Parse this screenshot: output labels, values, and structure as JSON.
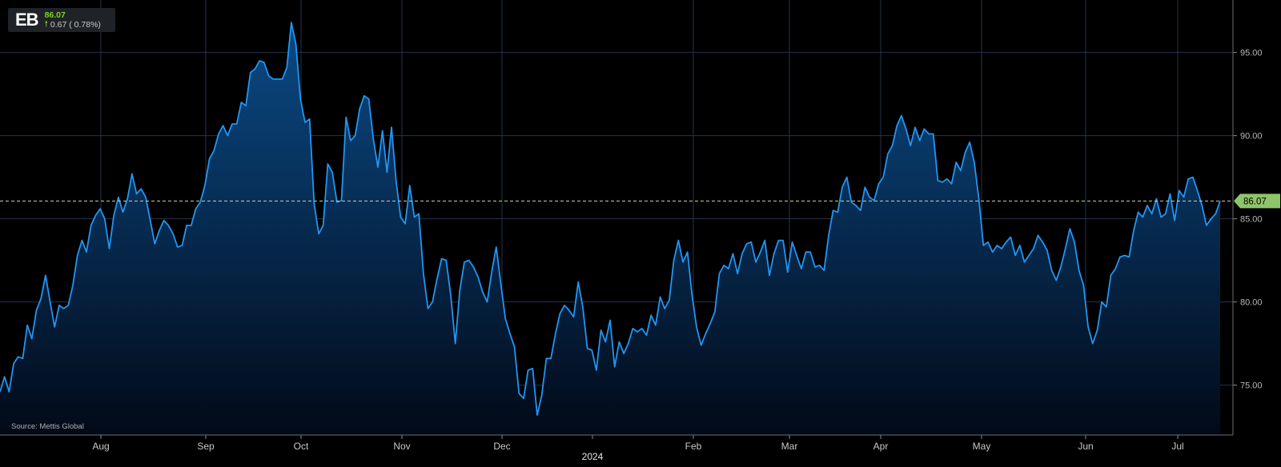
{
  "ticker": {
    "symbol": "EB",
    "price": "86.07",
    "change": "0.67 ( 0.78%)",
    "direction": "up"
  },
  "source": "Source: Mettis Global",
  "colors": {
    "background": "#000000",
    "line": "#2196f3",
    "area_top": "#0b4a86",
    "grid": "#26334a",
    "last_price_tag": "#8fc46a"
  },
  "chart_data": {
    "type": "area",
    "title": "",
    "xlabel": "",
    "ylabel": "",
    "ylim": [
      72,
      98
    ],
    "y_ticks": [
      "75.00",
      "80.00",
      "85.00",
      "90.00",
      "95.00"
    ],
    "x_ticks": [
      "Aug",
      "Sep",
      "Oct",
      "Nov",
      "Dec",
      "Feb",
      "Mar",
      "Apr",
      "May",
      "Jun",
      "Jul"
    ],
    "year_label": "2024",
    "last_price_label": "86.07",
    "last_price": 86.07,
    "grid": true,
    "axis_position": "right",
    "series": [
      {
        "values": [
          74.6,
          75.5,
          74.6,
          76.3,
          76.7,
          76.6,
          78.6,
          77.8,
          79.5,
          80.2,
          81.6,
          80.0,
          78.5,
          79.8,
          79.6,
          79.8,
          81.0,
          82.8,
          83.7,
          83.0,
          84.6,
          85.2,
          85.6,
          85.0,
          83.2,
          85.2,
          86.3,
          85.4,
          86.2,
          87.7,
          86.5,
          86.8,
          86.3,
          84.9,
          83.5,
          84.3,
          84.9,
          84.6,
          84.1,
          83.3,
          83.4,
          84.6,
          84.6,
          85.6,
          86.0,
          87.0,
          88.6,
          89.1,
          90.1,
          90.6,
          90.0,
          90.7,
          90.7,
          92.0,
          91.8,
          93.8,
          94.0,
          94.5,
          94.4,
          93.6,
          93.4,
          93.4,
          93.4,
          94.1,
          96.8,
          95.5,
          92.2,
          90.8,
          91.0,
          85.9,
          84.1,
          84.6,
          88.3,
          87.8,
          86.0,
          86.1,
          91.1,
          89.7,
          90.0,
          91.6,
          92.4,
          92.2,
          89.8,
          88.1,
          90.3,
          87.8,
          90.5,
          87.3,
          85.1,
          84.7,
          87.0,
          85.1,
          85.3,
          81.7,
          79.6,
          80.0,
          81.4,
          82.6,
          82.5,
          80.4,
          77.5,
          80.7,
          82.4,
          82.5,
          82.1,
          81.5,
          80.6,
          80.0,
          81.8,
          83.3,
          81.1,
          79.0,
          78.1,
          77.3,
          74.5,
          74.2,
          75.9,
          76.0,
          73.2,
          74.4,
          76.6,
          76.6,
          78.1,
          79.3,
          79.8,
          79.5,
          79.1,
          81.2,
          79.7,
          77.2,
          77.1,
          75.9,
          78.3,
          77.6,
          78.9,
          76.1,
          77.6,
          76.9,
          77.5,
          78.4,
          78.2,
          78.4,
          78.0,
          79.2,
          78.6,
          80.3,
          79.6,
          80.1,
          82.5,
          83.7,
          82.4,
          83.0,
          80.4,
          78.5,
          77.4,
          78.1,
          78.7,
          79.4,
          81.7,
          82.2,
          82.0,
          82.9,
          81.7,
          82.9,
          83.5,
          83.6,
          82.4,
          83.0,
          83.7,
          81.6,
          82.9,
          83.7,
          83.7,
          81.8,
          83.6,
          82.8,
          82.0,
          83.0,
          83.0,
          82.1,
          82.2,
          81.9,
          84.0,
          85.5,
          85.4,
          86.9,
          87.5,
          86.0,
          85.8,
          85.5,
          86.9,
          86.3,
          86.1,
          87.1,
          87.5,
          88.9,
          89.4,
          90.6,
          91.2,
          90.4,
          89.4,
          90.5,
          89.7,
          90.4,
          90.1,
          90.1,
          87.3,
          87.2,
          87.4,
          87.1,
          88.4,
          87.9,
          89.0,
          89.6,
          88.4,
          86.2,
          83.4,
          83.6,
          83.0,
          83.4,
          83.2,
          83.6,
          83.9,
          82.8,
          83.4,
          82.4,
          82.8,
          83.2,
          84.0,
          83.6,
          83.1,
          81.9,
          81.3,
          82.1,
          83.2,
          84.4,
          83.6,
          81.9,
          81.0,
          78.5,
          77.5,
          78.3,
          80.0,
          79.7,
          81.6,
          82.0,
          82.7,
          82.8,
          82.7,
          84.3,
          85.4,
          85.1,
          85.8,
          85.3,
          86.2,
          85.1,
          85.3,
          86.5,
          84.9,
          86.7,
          86.3,
          87.4,
          87.5,
          86.7,
          85.8,
          84.6,
          85.0,
          85.3,
          86.07
        ]
      }
    ]
  }
}
